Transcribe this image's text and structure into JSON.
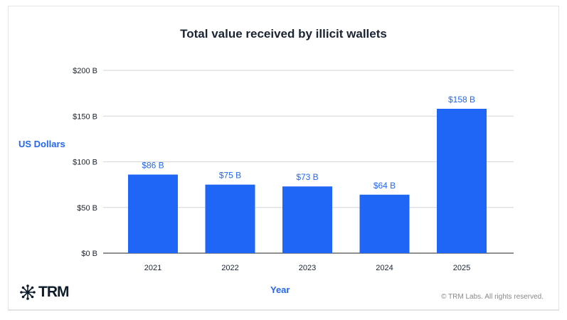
{
  "chart_data": {
    "type": "bar",
    "title": "Total value received by illicit wallets",
    "xlabel": "Year",
    "ylabel": "US Dollars",
    "categories": [
      "2021",
      "2022",
      "2023",
      "2024",
      "2025"
    ],
    "values": [
      86,
      75,
      73,
      64,
      158
    ],
    "data_labels": [
      "$86 B",
      "$75 B",
      "$73 B",
      "$64 B",
      "$158 B"
    ],
    "yticks": [
      0,
      50,
      100,
      150,
      200
    ],
    "ytick_labels": [
      "$0 B",
      "$50 B",
      "$100 B",
      "$150 B",
      "$200 B"
    ],
    "ylim": [
      0,
      200
    ],
    "grid": true,
    "bar_color": "#1f66f7"
  },
  "footer": {
    "logo_text": "TRM",
    "copyright": "© TRM Labs. All rights reserved."
  }
}
